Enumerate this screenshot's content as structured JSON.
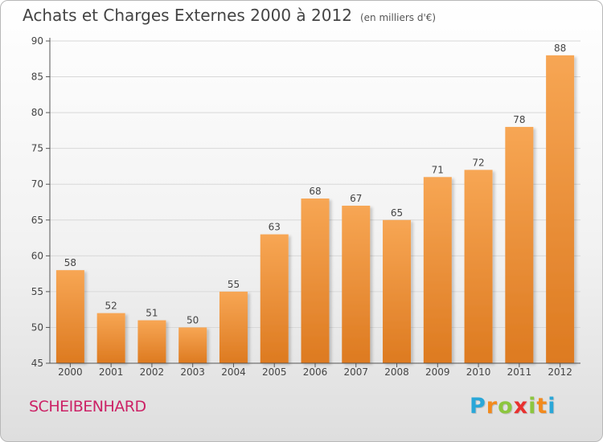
{
  "title": "Achats et Charges Externes 2000 à 2012",
  "subtitle": "(en milliers d'€)",
  "commune": "SCHEIBENHARD",
  "logo": {
    "letters": [
      "P",
      "r",
      "o",
      "x",
      "i",
      "t",
      "i"
    ],
    "colors": [
      "#2aa7d8",
      "#f28a1d",
      "#8cc63f",
      "#e8312f",
      "#8cc63f",
      "#f28a1d",
      "#2aa7d8"
    ]
  },
  "chart_data": {
    "type": "bar",
    "title": "Achats et Charges Externes 2000 à 2012",
    "subtitle": "(en milliers d'€)",
    "categories": [
      "2000",
      "2001",
      "2002",
      "2003",
      "2004",
      "2005",
      "2006",
      "2007",
      "2008",
      "2009",
      "2010",
      "2011",
      "2012"
    ],
    "values": [
      58,
      52,
      51,
      50,
      55,
      63,
      68,
      67,
      65,
      71,
      72,
      78,
      88
    ],
    "ylim": [
      45,
      90
    ],
    "yticks": [
      45,
      50,
      55,
      60,
      65,
      70,
      75,
      80,
      85,
      90
    ],
    "grid": true,
    "legend": "none",
    "colors": {
      "bar_top": "#f7a654",
      "bar_bottom": "#dd7a20",
      "grid": "#d8d8d8",
      "axis": "#555555"
    }
  }
}
